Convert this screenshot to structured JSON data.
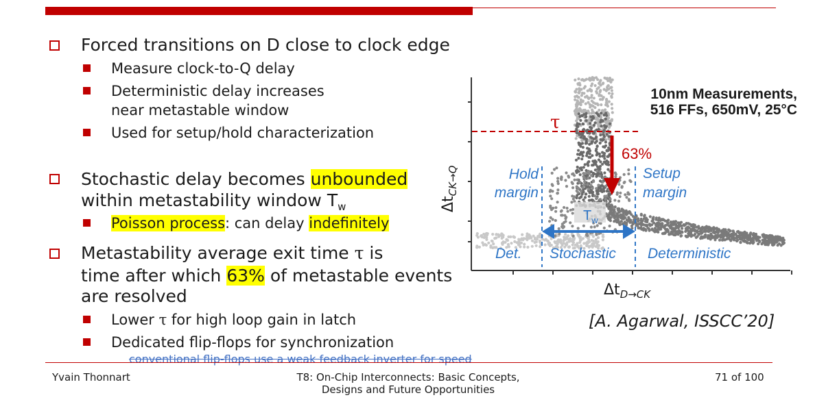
{
  "bullets": {
    "b1": "Forced transitions on D close to clock edge",
    "b1_sub": [
      "Measure clock-to-Q delay",
      "Deterministic delay increases",
      "near metastable window",
      "Used for setup/hold characterization"
    ],
    "b2_line1_pre": "Stochastic delay becomes ",
    "b2_line1_hl": "unbounded",
    "b2_line2": "within metastability window T",
    "b2_line2_sub": "w",
    "b2_sub_hl1": "Poisson process",
    "b2_sub_mid": ": can delay ",
    "b2_sub_hl2": "indefinitely",
    "b3_line1_pre": "Metastability average exit time ",
    "b3_tau": "τ",
    "b3_line1_post": " is",
    "b3_line2_pre": "time after which ",
    "b3_line2_hl": "63%",
    "b3_line2_post": " of metastable events",
    "b3_line3": "are resolved",
    "b3_sub1_pre": "Lower ",
    "b3_sub1_tau": "τ",
    "b3_sub1_post": " for high loop gain in latch",
    "b3_sub2": "Dedicated flip-flops for synchronization"
  },
  "caption": "conventional flip-flops use a weak feedback inverter for speed",
  "footer": {
    "author": "Yvain Thonnart",
    "title_line1": "T8: On-Chip Interconnects: Basic Concepts,",
    "title_line2": "Designs and Future Opportunities",
    "page": "71 of 100"
  },
  "figure": {
    "meas_line1": "10nm Measurements,",
    "meas_line2": "516 FFs, 650mV, 25°C",
    "tau": "τ",
    "pct": "63%",
    "hold1": "Hold",
    "hold2": "margin",
    "setup1": "Setup",
    "setup2": "margin",
    "tw": "T",
    "tw_sub": "w",
    "det": "Det.",
    "stochastic": "Stochastic",
    "deterministic": "Deterministic",
    "ylabel_main": "Δt",
    "ylabel_sub": "CK→Q",
    "xlabel_main": "Δt",
    "xlabel_sub": "D→CK",
    "colors": {
      "red": "#c00000",
      "blue": "#2e75c6",
      "dark": "#555555",
      "light": "#bfbfbf"
    }
  },
  "reference": "[A. Agarwal, ISSCC’20]"
}
